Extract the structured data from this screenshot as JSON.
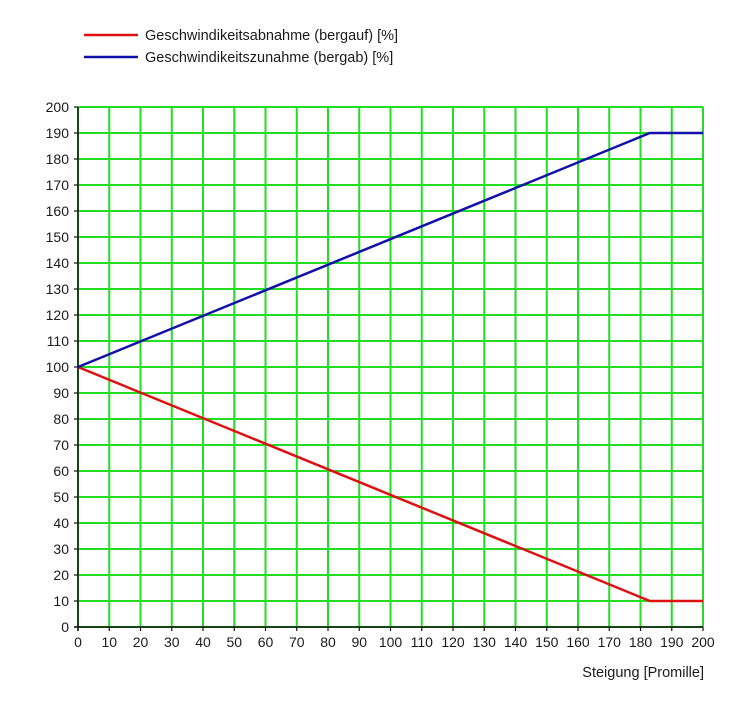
{
  "chart_data": {
    "type": "line",
    "title": "",
    "xlabel": "Steigung [Promille]",
    "ylabel": "",
    "xlim": [
      0,
      200
    ],
    "ylim": [
      0,
      200
    ],
    "xticks": [
      0,
      10,
      20,
      30,
      40,
      50,
      60,
      70,
      80,
      90,
      100,
      110,
      120,
      130,
      140,
      150,
      160,
      170,
      180,
      190,
      200
    ],
    "yticks": [
      0,
      10,
      20,
      30,
      40,
      50,
      60,
      70,
      80,
      90,
      100,
      110,
      120,
      130,
      140,
      150,
      160,
      170,
      180,
      190,
      200
    ],
    "grid": true,
    "grid_color": "#22dd22",
    "legend_position": "top-left",
    "series": [
      {
        "name": "Geschwindikeitsabnahme (bergauf) [%]",
        "color": "#dd1111",
        "x": [
          0,
          183,
          200
        ],
        "y": [
          100,
          10,
          10
        ]
      },
      {
        "name": "Geschwindikeitszunahme (bergab) [%]",
        "color": "#1111aa",
        "x": [
          0,
          183,
          200
        ],
        "y": [
          100,
          190,
          190
        ]
      }
    ]
  }
}
